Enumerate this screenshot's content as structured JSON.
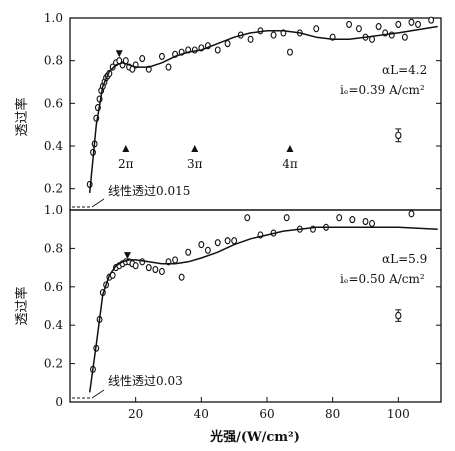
{
  "chart_data": [
    {
      "type": "line",
      "panel": "top",
      "ylabel": "透过率",
      "ylim": [
        0.1,
        1.0
      ],
      "yticks": [
        0.2,
        0.4,
        0.6,
        0.8,
        1.0
      ],
      "xlim": [
        0,
        113
      ],
      "annotations": {
        "param_aL": "αL=4.2",
        "param_ic": "iₑ=0.39 A/cm²",
        "linear_label": "线性透过0.015",
        "markers": [
          {
            "label": "2π",
            "x": 17
          },
          {
            "label": "3π",
            "x": 38
          },
          {
            "label": "4π",
            "x": 67
          }
        ],
        "peak_marker_x": 15,
        "peak_marker_y": 0.83
      },
      "series": [
        {
          "type": "points",
          "x": [
            6,
            7,
            7.5,
            8,
            8.5,
            9,
            9.5,
            10,
            10.5,
            11,
            11.5,
            12,
            13,
            14,
            15,
            16,
            17,
            18,
            19,
            20,
            22,
            24,
            28,
            30,
            32,
            34,
            36,
            38,
            40,
            42,
            45,
            48,
            52,
            55,
            58,
            62,
            65,
            67,
            70,
            75,
            80,
            85,
            88,
            90,
            92,
            94,
            96,
            98,
            100,
            102,
            104,
            106,
            110
          ],
          "y": [
            0.22,
            0.37,
            0.41,
            0.53,
            0.58,
            0.62,
            0.66,
            0.68,
            0.7,
            0.72,
            0.73,
            0.74,
            0.77,
            0.79,
            0.8,
            0.78,
            0.8,
            0.77,
            0.76,
            0.78,
            0.81,
            0.76,
            0.82,
            0.77,
            0.83,
            0.84,
            0.85,
            0.85,
            0.86,
            0.87,
            0.85,
            0.88,
            0.92,
            0.9,
            0.94,
            0.92,
            0.93,
            0.84,
            0.93,
            0.95,
            0.91,
            0.97,
            0.95,
            0.91,
            0.9,
            0.96,
            0.93,
            0.92,
            0.97,
            0.91,
            0.98,
            0.97,
            0.99
          ]
        },
        {
          "type": "curve",
          "x": [
            6,
            8,
            10,
            12,
            14,
            16,
            18,
            20,
            24,
            28,
            32,
            36,
            40,
            45,
            50,
            55,
            60,
            65,
            70,
            75,
            80,
            85,
            90,
            100,
            112
          ],
          "y": [
            0.18,
            0.5,
            0.68,
            0.75,
            0.78,
            0.79,
            0.78,
            0.77,
            0.77,
            0.79,
            0.82,
            0.84,
            0.85,
            0.88,
            0.91,
            0.93,
            0.94,
            0.94,
            0.93,
            0.91,
            0.9,
            0.9,
            0.91,
            0.93,
            0.96
          ]
        },
        {
          "type": "errorbar",
          "x": [
            100
          ],
          "y": [
            0.45
          ],
          "err": 0.03
        }
      ]
    },
    {
      "type": "line",
      "panel": "bottom",
      "ylabel": "透过率",
      "xlabel": "光强/(W/cm²)",
      "ylim": [
        0,
        1.0
      ],
      "yticks": [
        0,
        0.2,
        0.4,
        0.6,
        0.8,
        1.0
      ],
      "xlim": [
        0,
        113
      ],
      "xticks": [
        20,
        40,
        60,
        80,
        100
      ],
      "annotations": {
        "param_aL": "αL=5.9",
        "param_ic": "iₑ=0.50 A/cm²",
        "linear_label": "线性透过0.03",
        "peak_marker_x": 17.5,
        "peak_marker_y": 0.76
      },
      "series": [
        {
          "type": "points",
          "x": [
            7,
            8,
            9,
            10,
            11,
            12,
            13,
            14,
            15,
            16,
            17,
            18,
            19,
            20,
            22,
            24,
            26,
            28,
            30,
            32,
            34,
            36,
            40,
            42,
            45,
            48,
            50,
            54,
            58,
            62,
            66,
            70,
            74,
            78,
            82,
            86,
            90,
            92,
            104
          ],
          "y": [
            0.17,
            0.28,
            0.43,
            0.57,
            0.61,
            0.65,
            0.66,
            0.7,
            0.71,
            0.72,
            0.73,
            0.73,
            0.72,
            0.71,
            0.73,
            0.7,
            0.69,
            0.68,
            0.73,
            0.74,
            0.65,
            0.78,
            0.82,
            0.79,
            0.83,
            0.84,
            0.84,
            0.96,
            0.87,
            0.88,
            0.96,
            0.9,
            0.9,
            0.91,
            0.96,
            0.95,
            0.94,
            0.93,
            0.98
          ]
        },
        {
          "type": "curve",
          "x": [
            6,
            8,
            10,
            12,
            14,
            16,
            18,
            20,
            24,
            28,
            32,
            36,
            40,
            45,
            50,
            55,
            60,
            65,
            70,
            75,
            80,
            85,
            90,
            100,
            112
          ],
          "y": [
            0.05,
            0.3,
            0.56,
            0.66,
            0.71,
            0.73,
            0.74,
            0.74,
            0.73,
            0.72,
            0.72,
            0.73,
            0.75,
            0.78,
            0.82,
            0.85,
            0.87,
            0.89,
            0.9,
            0.91,
            0.91,
            0.91,
            0.91,
            0.91,
            0.9
          ]
        },
        {
          "type": "errorbar",
          "x": [
            100
          ],
          "y": [
            0.45
          ],
          "err": 0.03
        }
      ]
    }
  ]
}
